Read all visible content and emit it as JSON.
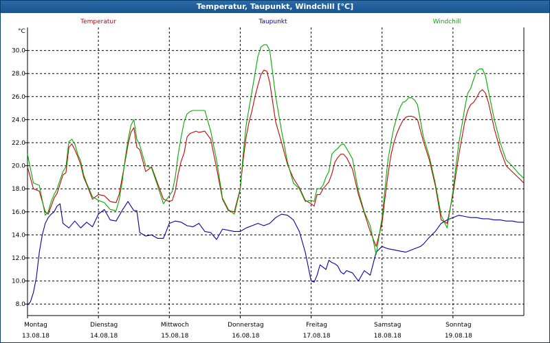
{
  "window": {
    "title": "Temperatur, Taupunkt, Windchill [°C]"
  },
  "chart_data": {
    "type": "line",
    "title": "Temperatur, Taupunkt, Windchill [°C]",
    "ylabel": "°C",
    "ylim": [
      7.0,
      32.0
    ],
    "xlim": [
      0,
      168
    ],
    "grid": true,
    "legend_placement": "top",
    "yticks": [
      "8.0",
      "10.0",
      "12.0",
      "14.0",
      "16.0",
      "18.0",
      "20.0",
      "22.0",
      "24.0",
      "26.0",
      "28.0",
      "30.0"
    ],
    "ytick_values": [
      8,
      10,
      12,
      14,
      16,
      18,
      20,
      22,
      24,
      26,
      28,
      30
    ],
    "x_unit": "hours since start of day 13.08.18",
    "days": [
      {
        "weekday": "Montag",
        "date": "13.08.18"
      },
      {
        "weekday": "Dienstag",
        "date": "14.08.18"
      },
      {
        "weekday": "Mittwoch",
        "date": "15.08.18"
      },
      {
        "weekday": "Donnerstag",
        "date": "16.08.18"
      },
      {
        "weekday": "Freitag",
        "date": "17.08.18"
      },
      {
        "weekday": "Samstag",
        "date": "18.08.18"
      },
      {
        "weekday": "Sonntag",
        "date": "19.08.18"
      }
    ],
    "series": [
      {
        "name": "Temperatur",
        "color": "#cc0000",
        "x": [
          0,
          2,
          4,
          6,
          7,
          8,
          9,
          10,
          12,
          13,
          14,
          15,
          16,
          17,
          18,
          19,
          20,
          22,
          24,
          26,
          28,
          30,
          31,
          32,
          33,
          34,
          35,
          36,
          37,
          38,
          40,
          42,
          44,
          46,
          48,
          49,
          50,
          51,
          52,
          53,
          54,
          55,
          56,
          57,
          58,
          60,
          62,
          64,
          66,
          68,
          70,
          72,
          73,
          74,
          75,
          76,
          77,
          78,
          79,
          80,
          81,
          82,
          84,
          86,
          88,
          90,
          92,
          94,
          96,
          97,
          98,
          99,
          100,
          101,
          102,
          103,
          104,
          105,
          106,
          107,
          108,
          110,
          112,
          114,
          116,
          118,
          120,
          121,
          122,
          123,
          124,
          125,
          126,
          127,
          128,
          129,
          130,
          131,
          132,
          134,
          136,
          138,
          140,
          142,
          144,
          145,
          146,
          147,
          148,
          149,
          150,
          151,
          152,
          153,
          154,
          155,
          156,
          158,
          160,
          162,
          164,
          166,
          168
        ],
        "y": [
          19.9,
          18.0,
          17.8,
          16.0,
          15.8,
          16.5,
          17.2,
          17.6,
          19.2,
          19.4,
          21.6,
          21.9,
          21.4,
          20.8,
          20.1,
          19.0,
          18.4,
          17.1,
          17.5,
          17.4,
          16.9,
          16.8,
          17.5,
          18.9,
          20.3,
          21.8,
          22.9,
          23.3,
          21.6,
          21.4,
          19.5,
          19.9,
          18.5,
          17.1,
          16.9,
          17.0,
          17.8,
          19.3,
          20.4,
          21.1,
          22.5,
          22.8,
          22.9,
          23.0,
          22.9,
          23.0,
          22.3,
          19.8,
          17.1,
          16.1,
          16.0,
          18.0,
          20.5,
          22.5,
          23.8,
          24.8,
          26.0,
          27.0,
          27.9,
          28.3,
          28.2,
          27.2,
          23.8,
          22.0,
          20.1,
          18.9,
          18.1,
          17.0,
          16.7,
          16.5,
          17.5,
          17.5,
          18.0,
          18.3,
          18.6,
          19.3,
          20.3,
          20.7,
          21.0,
          21.0,
          20.7,
          19.7,
          17.5,
          15.9,
          14.3,
          13.0,
          15.0,
          17.2,
          19.2,
          20.9,
          22.0,
          22.8,
          23.4,
          23.9,
          24.2,
          24.3,
          24.3,
          24.2,
          24.0,
          22.1,
          20.5,
          18.3,
          15.3,
          15.0,
          17.5,
          19.3,
          21.0,
          22.4,
          23.8,
          24.8,
          25.3,
          25.5,
          25.9,
          26.4,
          26.6,
          26.3,
          25.5,
          23.2,
          21.4,
          20.0,
          19.5,
          19.0,
          18.5
        ]
      },
      {
        "name": "Taupunkt",
        "color": "#0000aa",
        "x": [
          0,
          1,
          2,
          3,
          4,
          5,
          6,
          7,
          8,
          9,
          10,
          11,
          12,
          14,
          16,
          18,
          20,
          22,
          24,
          26,
          28,
          30,
          32,
          34,
          36,
          37,
          38,
          40,
          42,
          44,
          46,
          48,
          50,
          52,
          54,
          56,
          58,
          60,
          62,
          64,
          66,
          68,
          70,
          72,
          74,
          76,
          78,
          80,
          82,
          84,
          86,
          88,
          90,
          92,
          94,
          96,
          97,
          98,
          99,
          100,
          101,
          102,
          103,
          104,
          105,
          106,
          107,
          108,
          110,
          112,
          114,
          116,
          118,
          120,
          122,
          124,
          126,
          128,
          130,
          132,
          133,
          134,
          136,
          138,
          140,
          142,
          144,
          146,
          148,
          150,
          152,
          154,
          156,
          158,
          160,
          162,
          164,
          166,
          168
        ],
        "y": [
          7.9,
          8.2,
          9.0,
          10.3,
          12.5,
          14.0,
          15.0,
          15.5,
          15.8,
          16.0,
          16.5,
          16.7,
          15.0,
          14.6,
          15.2,
          14.6,
          15.1,
          14.7,
          15.8,
          16.2,
          15.3,
          15.2,
          16.1,
          16.9,
          16.1,
          16.1,
          14.2,
          13.9,
          14.0,
          13.7,
          13.7,
          15.0,
          15.2,
          15.1,
          14.8,
          14.7,
          15.0,
          14.3,
          14.2,
          13.6,
          14.5,
          14.4,
          14.3,
          14.3,
          14.6,
          14.8,
          15.0,
          14.8,
          15.0,
          15.5,
          15.8,
          15.7,
          15.3,
          14.3,
          12.5,
          10.0,
          9.9,
          10.5,
          11.4,
          11.2,
          11.0,
          11.8,
          11.6,
          11.5,
          11.3,
          10.8,
          10.6,
          10.9,
          10.7,
          10.0,
          10.9,
          10.5,
          12.5,
          13.0,
          12.8,
          12.7,
          12.6,
          12.5,
          12.7,
          12.9,
          13.0,
          13.2,
          13.8,
          14.3,
          15.0,
          15.3,
          15.5,
          15.7,
          15.6,
          15.5,
          15.5,
          15.4,
          15.4,
          15.3,
          15.3,
          15.2,
          15.2,
          15.1,
          15.1
        ]
      },
      {
        "name": "Windchill",
        "color": "#00aa00",
        "x": [
          0,
          2,
          4,
          6,
          7,
          8,
          9,
          10,
          12,
          13,
          14,
          15,
          16,
          17,
          18,
          19,
          20,
          22,
          24,
          26,
          28,
          30,
          31,
          32,
          33,
          34,
          35,
          36,
          37,
          38,
          40,
          42,
          44,
          46,
          48,
          49,
          50,
          51,
          52,
          53,
          54,
          55,
          56,
          57,
          58,
          60,
          62,
          64,
          66,
          68,
          70,
          72,
          73,
          74,
          75,
          76,
          77,
          78,
          79,
          80,
          81,
          82,
          84,
          86,
          88,
          90,
          92,
          94,
          96,
          97,
          98,
          99,
          100,
          101,
          102,
          103,
          104,
          105,
          106,
          107,
          108,
          110,
          112,
          114,
          116,
          118,
          120,
          121,
          122,
          123,
          124,
          125,
          126,
          127,
          128,
          129,
          130,
          131,
          132,
          134,
          136,
          138,
          140,
          142,
          144,
          145,
          146,
          147,
          148,
          149,
          150,
          151,
          152,
          153,
          154,
          155,
          156,
          158,
          160,
          162,
          164,
          166,
          168
        ],
        "y": [
          21.0,
          18.5,
          18.3,
          15.7,
          16.0,
          16.9,
          17.5,
          18.0,
          19.5,
          19.9,
          22.1,
          22.3,
          21.9,
          21.0,
          20.4,
          19.2,
          18.5,
          17.3,
          17.0,
          16.8,
          16.2,
          16.1,
          17.0,
          18.5,
          20.5,
          22.2,
          23.5,
          24.0,
          22.3,
          21.8,
          20.0,
          19.8,
          18.3,
          16.7,
          17.4,
          17.8,
          19.0,
          21.0,
          22.5,
          23.8,
          24.5,
          24.7,
          24.8,
          24.8,
          24.8,
          24.8,
          23.0,
          20.5,
          17.2,
          16.2,
          15.8,
          17.9,
          21.0,
          23.5,
          25.0,
          26.5,
          28.0,
          29.5,
          30.3,
          30.5,
          30.5,
          30.0,
          26.0,
          23.0,
          20.3,
          18.5,
          18.0,
          16.9,
          17.0,
          16.9,
          18.0,
          18.0,
          18.3,
          19.0,
          19.5,
          21.0,
          21.3,
          21.5,
          21.8,
          21.9,
          21.5,
          20.6,
          17.8,
          16.0,
          14.8,
          12.3,
          15.5,
          18.0,
          20.5,
          22.0,
          23.3,
          24.2,
          25.0,
          25.5,
          25.6,
          25.9,
          25.9,
          25.7,
          25.3,
          22.5,
          20.8,
          18.5,
          15.7,
          14.6,
          17.8,
          20.0,
          22.0,
          23.5,
          25.0,
          26.3,
          26.7,
          27.5,
          28.2,
          28.4,
          28.4,
          27.8,
          26.5,
          24.0,
          22.0,
          20.5,
          20.0,
          19.4,
          18.9
        ]
      }
    ]
  }
}
